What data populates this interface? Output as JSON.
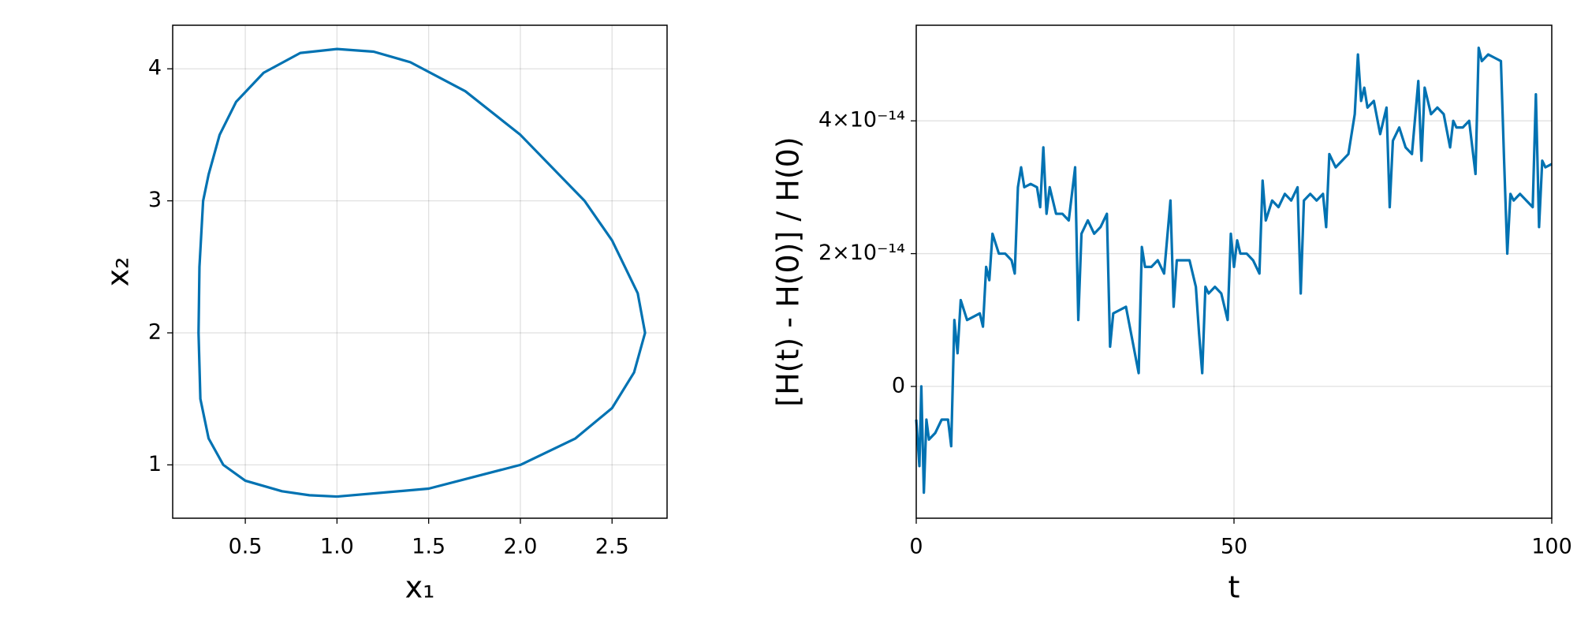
{
  "chart_data": [
    {
      "type": "line",
      "xlabel": "x₁",
      "ylabel": "x₂",
      "x": [
        1.0,
        1.5,
        2.0,
        2.3,
        2.5,
        2.62,
        2.68,
        2.64,
        2.5,
        2.35,
        2.0,
        1.7,
        1.4,
        1.2,
        1.0,
        0.8,
        0.6,
        0.45,
        0.36,
        0.3,
        0.27,
        0.25,
        0.245,
        0.255,
        0.3,
        0.38,
        0.5,
        0.7,
        0.85,
        1.0
      ],
      "series": [
        {
          "color": "#0072b2",
          "values": [
            0.76,
            0.82,
            1.0,
            1.2,
            1.43,
            1.7,
            2.0,
            2.3,
            2.7,
            3.0,
            3.5,
            3.83,
            4.05,
            4.13,
            4.15,
            4.12,
            3.97,
            3.75,
            3.5,
            3.2,
            3.0,
            2.5,
            2.0,
            1.5,
            1.2,
            1.0,
            0.88,
            0.8,
            0.77,
            0.76
          ]
        }
      ],
      "xlim": [
        0.104,
        2.8
      ],
      "ylim": [
        0.596,
        4.33
      ],
      "xticks": [
        0.5,
        {
          "value": 1,
          "label": "1.0"
        },
        1.5,
        {
          "value": 2,
          "label": "2.0"
        },
        2.5
      ],
      "yticks": [
        1,
        2,
        3,
        4
      ],
      "grid": true
    },
    {
      "type": "line",
      "xlabel": "t",
      "ylabel": "[H(t) - H(0)] / H(0)",
      "x": [
        0,
        0.5,
        0.8,
        1.2,
        1.6,
        2,
        3,
        4,
        5,
        5.5,
        6,
        6.5,
        7,
        8,
        9,
        10,
        10.5,
        11,
        11.5,
        12,
        13,
        14,
        15,
        15.5,
        16,
        16.5,
        17,
        18,
        19,
        19.5,
        20,
        20.5,
        21,
        22,
        23,
        24,
        25,
        25.5,
        26,
        27,
        28,
        29,
        30,
        30.5,
        31,
        32,
        33,
        34,
        35,
        35.5,
        36,
        37,
        38,
        39,
        40,
        40.5,
        41,
        42,
        43,
        44,
        44.5,
        45,
        45.5,
        46,
        47,
        48,
        49,
        49.5,
        50,
        50.5,
        51,
        52,
        53,
        54,
        54.5,
        55,
        56,
        57,
        58,
        59,
        60,
        60.5,
        61,
        62,
        63,
        64,
        64.5,
        65,
        66,
        67,
        68,
        69,
        69.5,
        70,
        70.5,
        71,
        72,
        73,
        74,
        74.5,
        75,
        76,
        77,
        78,
        79,
        79.5,
        80,
        81,
        82,
        83,
        84,
        84.5,
        85,
        86,
        87,
        88,
        88.5,
        89,
        90,
        91,
        92,
        92.5,
        93,
        93.5,
        94,
        95,
        96,
        97,
        97.5,
        98,
        98.5,
        99,
        100
      ],
      "series": [
        {
          "color": "#0072b2",
          "values": [
            -5e-15,
            -1.2e-14,
            0.0,
            -1.6e-14,
            -5e-15,
            -8e-15,
            -7e-15,
            -5e-15,
            -5e-15,
            -9e-15,
            1e-14,
            5e-15,
            1.3e-14,
            1e-14,
            1.05e-14,
            1.1e-14,
            9e-15,
            1.8e-14,
            1.6e-14,
            2.3e-14,
            2e-14,
            2e-14,
            1.9e-14,
            1.7e-14,
            3e-14,
            3.3e-14,
            3e-14,
            3.05e-14,
            3e-14,
            2.7e-14,
            3.6e-14,
            2.6e-14,
            3e-14,
            2.6e-14,
            2.6e-14,
            2.5e-14,
            3.3e-14,
            1e-14,
            2.3e-14,
            2.5e-14,
            2.3e-14,
            2.4e-14,
            2.6e-14,
            6e-15,
            1.1e-14,
            1.15e-14,
            1.2e-14,
            7e-15,
            2e-15,
            2.1e-14,
            1.8e-14,
            1.8e-14,
            1.9e-14,
            1.7e-14,
            2.8e-14,
            1.2e-14,
            1.9e-14,
            1.9e-14,
            1.9e-14,
            1.5e-14,
            8e-15,
            2e-15,
            1.5e-14,
            1.4e-14,
            1.5e-14,
            1.4e-14,
            1e-14,
            2.3e-14,
            1.8e-14,
            2.2e-14,
            2e-14,
            2e-14,
            1.9e-14,
            1.7e-14,
            3.1e-14,
            2.5e-14,
            2.8e-14,
            2.7e-14,
            2.9e-14,
            2.8e-14,
            3e-14,
            1.4e-14,
            2.8e-14,
            2.9e-14,
            2.8e-14,
            2.9e-14,
            2.4e-14,
            3.5e-14,
            3.3e-14,
            3.4e-14,
            3.5e-14,
            4.1e-14,
            5e-14,
            4.3e-14,
            4.5e-14,
            4.2e-14,
            4.3e-14,
            3.8e-14,
            4.2e-14,
            2.7e-14,
            3.7e-14,
            3.9e-14,
            3.6e-14,
            3.5e-14,
            4.6e-14,
            3.4e-14,
            4.5e-14,
            4.1e-14,
            4.2e-14,
            4.1e-14,
            3.6e-14,
            4e-14,
            3.9e-14,
            3.9e-14,
            4e-14,
            3.2e-14,
            5.1e-14,
            4.9e-14,
            5e-14,
            4.95e-14,
            4.9e-14,
            3.4e-14,
            2e-14,
            2.9e-14,
            2.8e-14,
            2.9e-14,
            2.8e-14,
            2.7e-14,
            4.4e-14,
            2.4e-14,
            3.4e-14,
            3.3e-14,
            3.35e-14
          ]
        }
      ],
      "xlim": [
        0,
        100
      ],
      "ylim": [
        -1.985e-14,
        5.44e-14
      ],
      "xticks": [
        0,
        50,
        100
      ],
      "yticks": [
        0,
        {
          "value": 2e-14,
          "label": "2×10⁻¹⁴"
        },
        {
          "value": 4e-14,
          "label": "4×10⁻¹⁴"
        }
      ],
      "grid": true
    }
  ]
}
